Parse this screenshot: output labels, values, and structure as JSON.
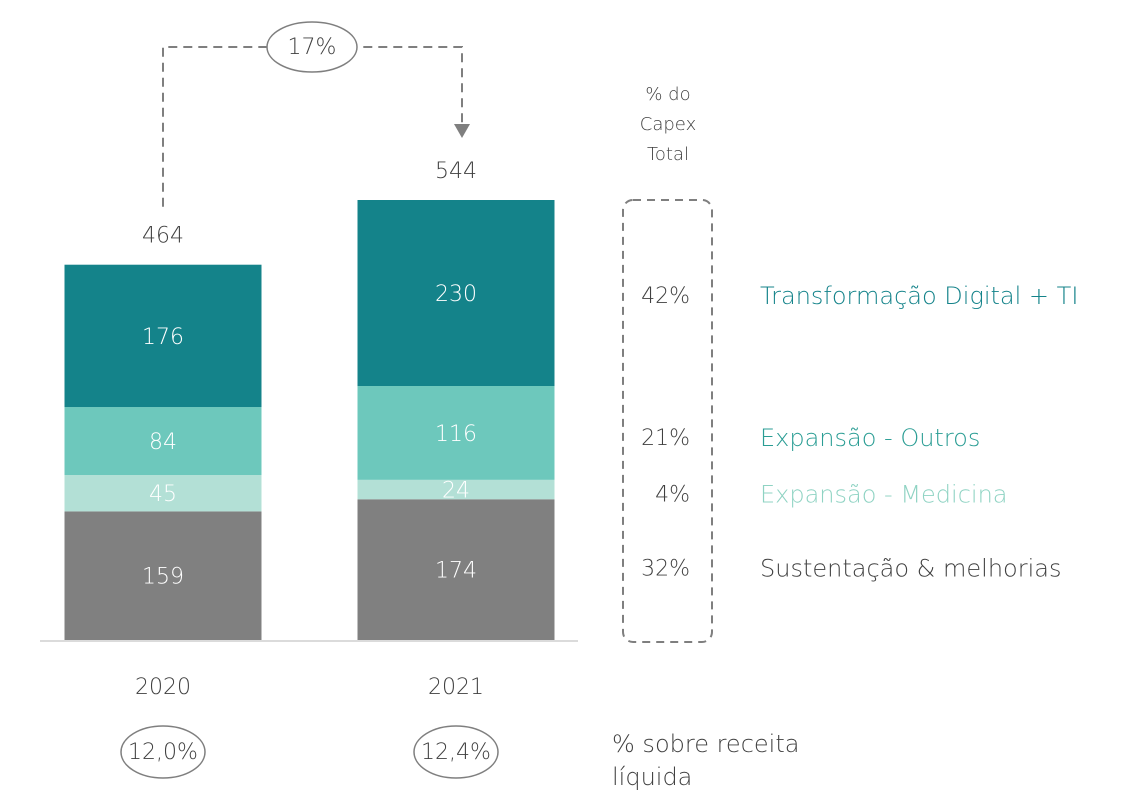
{
  "chart_data": {
    "type": "stacked_bar",
    "categories": [
      "2020",
      "2021"
    ],
    "series": [
      {
        "name": "Sustentação & melhorias",
        "color": "#808080",
        "text_color": "#404040",
        "values": [
          159,
          174
        ]
      },
      {
        "name": "Expansão - Medicina",
        "color": "#b3e0d6",
        "text_color": "#8fd3c3",
        "values": [
          45,
          24
        ]
      },
      {
        "name": "Expansão - Outros",
        "color": "#6dc8bc",
        "text_color": "#2a9d94",
        "values": [
          84,
          116
        ]
      },
      {
        "name": "Transformação Digital + TI",
        "color": "#14838a",
        "text_color": "#14838a",
        "values": [
          176,
          230
        ]
      }
    ],
    "totals": [
      464,
      544
    ],
    "growth": {
      "value": 17,
      "label": "17%"
    },
    "capex_share": {
      "title_lines": [
        "% do",
        "Capex",
        "Total"
      ],
      "values": [
        32,
        4,
        21,
        42
      ],
      "value_labels": [
        "32%",
        "4%",
        "21%",
        "42%"
      ]
    },
    "revenue_share": {
      "title_lines": [
        "% sobre receita",
        "líquida"
      ],
      "values": [
        12.0,
        12.4
      ],
      "value_labels": [
        "12,0%",
        "12,4%"
      ]
    }
  }
}
